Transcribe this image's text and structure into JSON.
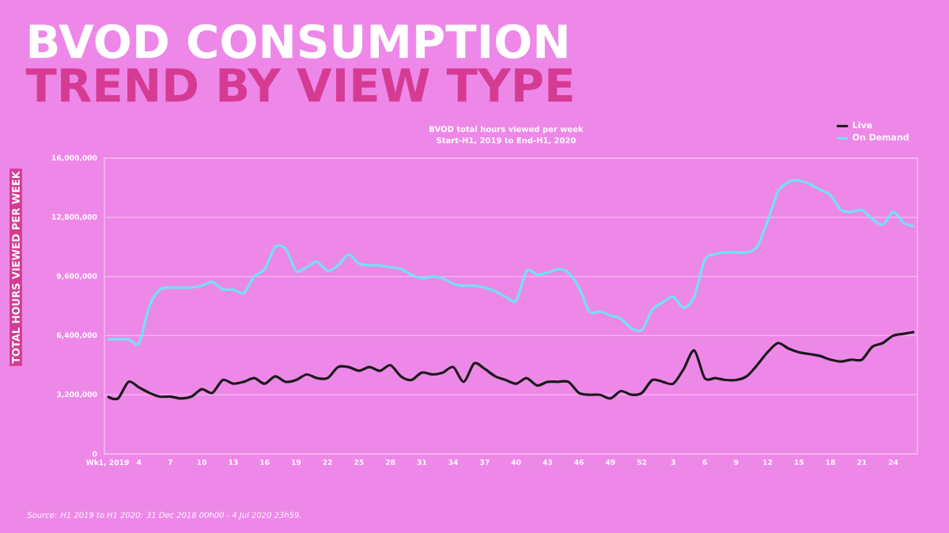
{
  "chart_data": {
    "type": "line",
    "title": "BVOD CONSUMPTION",
    "subtitle": "TREND BY VIEW TYPE",
    "ylabel": "TOTAL HOURS VIEWED PER WEEK",
    "annotations": [
      "BVOD total hours viewed per week",
      "Start-H1, 2019 to End-H1, 2020",
      "Source: H1 2019 to H1 2020: 31 Dec 2018 00h00 - 4 Jul 2020 23h59."
    ],
    "categories": [
      "Wk1, 2019",
      null,
      null,
      "4",
      null,
      null,
      "7",
      null,
      null,
      "10",
      null,
      null,
      "13",
      null,
      null,
      "16",
      null,
      null,
      "19",
      null,
      null,
      "22",
      null,
      null,
      "25",
      null,
      null,
      "28",
      null,
      null,
      "31",
      null,
      null,
      "34",
      null,
      null,
      "37",
      null,
      null,
      "40",
      null,
      null,
      "43",
      null,
      null,
      "46",
      null,
      null,
      "49",
      null,
      null,
      "52",
      null,
      null,
      "3",
      null,
      null,
      "6",
      null,
      null,
      "9",
      null,
      null,
      "12",
      null,
      null,
      "15",
      null,
      null,
      "18",
      null,
      null,
      "21",
      null,
      null,
      "24",
      null,
      null
    ],
    "series": [
      {
        "name": "Live",
        "color": "#1a1a1a",
        "values": [
          3100000,
          3000000,
          3900000,
          3600000,
          3300000,
          3100000,
          3100000,
          3000000,
          3100000,
          3500000,
          3300000,
          4000000,
          3800000,
          3900000,
          4100000,
          3800000,
          4200000,
          3900000,
          4000000,
          4300000,
          4100000,
          4100000,
          4700000,
          4700000,
          4500000,
          4700000,
          4500000,
          4800000,
          4200000,
          4000000,
          4400000,
          4300000,
          4400000,
          4700000,
          3900000,
          4900000,
          4600000,
          4200000,
          4000000,
          3800000,
          4100000,
          3700000,
          3900000,
          3900000,
          3900000,
          3300000,
          3200000,
          3200000,
          3000000,
          3400000,
          3200000,
          3300000,
          4000000,
          3900000,
          3800000,
          4600000,
          5600000,
          4100000,
          4100000,
          4000000,
          4000000,
          4200000,
          4800000,
          5500000,
          6000000,
          5700000,
          5500000,
          5400000,
          5300000,
          5100000,
          5000000,
          5100000,
          5100000,
          5800000,
          6000000,
          6400000,
          6500000,
          6600000
        ]
      },
      {
        "name": "On Demand",
        "color": "#72e2f5",
        "values": [
          6200000,
          6200000,
          6200000,
          6000000,
          8000000,
          8900000,
          9000000,
          9000000,
          9000000,
          9100000,
          9300000,
          8900000,
          8900000,
          8700000,
          9600000,
          10000000,
          11200000,
          11100000,
          9900000,
          10100000,
          10400000,
          9900000,
          10200000,
          10800000,
          10300000,
          10200000,
          10200000,
          10100000,
          10000000,
          9700000,
          9500000,
          9600000,
          9500000,
          9200000,
          9100000,
          9100000,
          9000000,
          8800000,
          8500000,
          8300000,
          9900000,
          9700000,
          9800000,
          10000000,
          9800000,
          9000000,
          7700000,
          7700000,
          7500000,
          7300000,
          6800000,
          6700000,
          7800000,
          8200000,
          8500000,
          7900000,
          8500000,
          10500000,
          10800000,
          10900000,
          10900000,
          10900000,
          11200000,
          12600000,
          14200000,
          14700000,
          14800000,
          14600000,
          14300000,
          14000000,
          13200000,
          13100000,
          13200000,
          12700000,
          12400000,
          13100000,
          12500000,
          12300000
        ]
      }
    ],
    "ylim": [
      0,
      16000000
    ],
    "yticks": [
      0,
      {
        "value": 3200000,
        "label": "3,200,000"
      },
      {
        "value": 6400000,
        "label": "6,400,000"
      },
      {
        "value": 9600000,
        "label": "9,600,000"
      },
      {
        "value": 12800000,
        "label": "12,800,000"
      },
      {
        "value": 16000000,
        "label": "16,000,000"
      }
    ],
    "grid": "y",
    "legend": "top right"
  }
}
